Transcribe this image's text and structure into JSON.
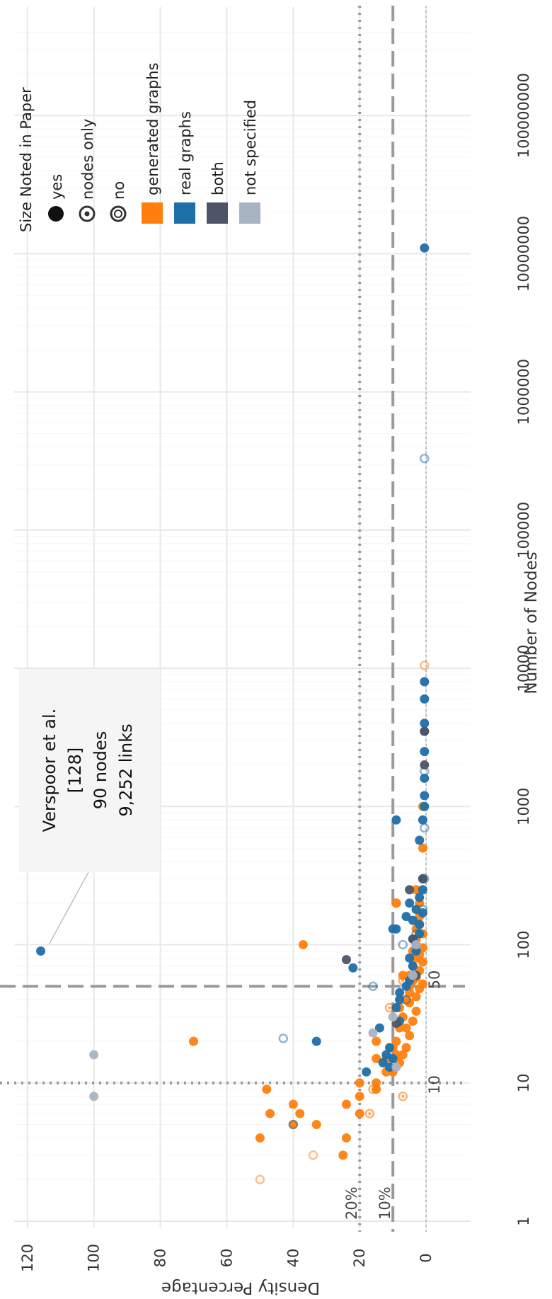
{
  "chart_data": {
    "type": "scatter",
    "title": "",
    "xlabel": "Number of Nodes",
    "ylabel": "Density Percentage",
    "x_scale": "log",
    "xlim": [
      1,
      300000000
    ],
    "ylim": [
      -7,
      124
    ],
    "x_ticks": [
      "1",
      "10",
      "100",
      "1000",
      "10000",
      "100000",
      "1000000",
      "10000000",
      "100000000"
    ],
    "y_ticks": [
      "0",
      "20",
      "40",
      "60",
      "80",
      "100",
      "120"
    ],
    "grid": true,
    "reference_lines": [
      {
        "axis": "x",
        "value": 10,
        "style": "dotted",
        "label": "10"
      },
      {
        "axis": "x",
        "value": 50,
        "style": "dashed",
        "label": "50"
      },
      {
        "axis": "y",
        "value": 20,
        "style": "dotted",
        "label": "20%"
      },
      {
        "axis": "y",
        "value": 10,
        "style": "dashed",
        "label": "10%"
      },
      {
        "axis": "y",
        "value": 0,
        "style": "dotted-fine",
        "label": ""
      }
    ],
    "annotation": {
      "lines": [
        "Verspoor et al.",
        "[128]",
        "90 nodes",
        "9,252 links"
      ],
      "x": 90,
      "y": 116
    },
    "legend": {
      "placement": "top-right",
      "size_title": "Size Noted in Paper",
      "size_items": [
        "yes",
        "nodes only",
        "no"
      ],
      "type_items": [
        "generated graphs",
        "real graphs",
        "both",
        "not specified"
      ]
    },
    "colors": {
      "generated": "#FF7F0E",
      "real": "#1F6FA8",
      "both": "#4D5566",
      "unspecified": "#A8B4C2"
    },
    "series": [
      {
        "name": "generated graphs",
        "points": [
          [
            20,
            70
          ],
          [
            100,
            37
          ],
          [
            9,
            48
          ],
          [
            7,
            40
          ],
          [
            6,
            38
          ],
          [
            3,
            25
          ],
          [
            4,
            24
          ],
          [
            5,
            33
          ],
          [
            4,
            50
          ],
          [
            6,
            47
          ],
          [
            8,
            20
          ],
          [
            10,
            20
          ],
          [
            9,
            15
          ],
          [
            15,
            15
          ],
          [
            20,
            15
          ],
          [
            5,
            40
          ],
          [
            6,
            20
          ],
          [
            7,
            24
          ],
          [
            10,
            15
          ],
          [
            12,
            12
          ],
          [
            15,
            12
          ],
          [
            18,
            10
          ],
          [
            20,
            9
          ],
          [
            25,
            8
          ],
          [
            30,
            7
          ],
          [
            35,
            8
          ],
          [
            40,
            6
          ],
          [
            45,
            5
          ],
          [
            50,
            5
          ],
          [
            55,
            4
          ],
          [
            60,
            5
          ],
          [
            70,
            4
          ],
          [
            80,
            3
          ],
          [
            90,
            4
          ],
          [
            110,
            3
          ],
          [
            130,
            3
          ],
          [
            160,
            2
          ],
          [
            200,
            2
          ],
          [
            200,
            9
          ],
          [
            250,
            3
          ],
          [
            500,
            1
          ],
          [
            1000,
            1
          ],
          [
            3500,
            0.5
          ],
          [
            12,
            10
          ],
          [
            14,
            8
          ],
          [
            16,
            7
          ],
          [
            18,
            6
          ],
          [
            22,
            5
          ],
          [
            28,
            4
          ],
          [
            33,
            3
          ],
          [
            38,
            5
          ],
          [
            42,
            3
          ],
          [
            48,
            2
          ],
          [
            52,
            1
          ],
          [
            58,
            3
          ],
          [
            65,
            2
          ],
          [
            75,
            1
          ],
          [
            85,
            2
          ],
          [
            95,
            1
          ],
          [
            120,
            1
          ],
          [
            140,
            2
          ],
          [
            60,
            7
          ],
          [
            25,
            6
          ],
          [
            16,
            9
          ]
        ]
      },
      {
        "name": "generated graphs (nodes only)",
        "hollow": "dot",
        "points": [
          [
            6,
            17
          ],
          [
            8,
            7
          ],
          [
            9,
            16
          ],
          [
            200,
            9
          ],
          [
            55,
            7
          ],
          [
            35,
            11
          ]
        ]
      },
      {
        "name": "generated graphs (no)",
        "hollow": "ring",
        "points": [
          [
            2,
            50
          ],
          [
            3,
            34
          ],
          [
            10500,
            0.5
          ]
        ]
      },
      {
        "name": "real graphs",
        "points": [
          [
            90,
            116
          ],
          [
            68,
            22
          ],
          [
            20,
            33
          ],
          [
            12,
            18
          ],
          [
            13,
            11
          ],
          [
            14,
            13
          ],
          [
            15,
            10
          ],
          [
            16,
            12
          ],
          [
            18,
            11
          ],
          [
            28,
            8
          ],
          [
            40,
            8
          ],
          [
            50,
            6
          ],
          [
            55,
            5
          ],
          [
            60,
            4
          ],
          [
            70,
            4
          ],
          [
            100,
            3
          ],
          [
            120,
            2
          ],
          [
            130,
            10
          ],
          [
            130,
            9
          ],
          [
            150,
            4
          ],
          [
            180,
            3
          ],
          [
            200,
            5
          ],
          [
            250,
            1
          ],
          [
            300,
            1
          ],
          [
            570,
            2
          ],
          [
            800,
            1
          ],
          [
            1000,
            0.5
          ],
          [
            1200,
            0.5
          ],
          [
            1600,
            0.5
          ],
          [
            2500,
            0.5
          ],
          [
            3500,
            0.5
          ],
          [
            4000,
            0.5
          ],
          [
            6000,
            0.5
          ],
          [
            8000,
            0.5
          ],
          [
            11000000,
            0.5
          ],
          [
            25,
            14
          ],
          [
            35,
            9
          ],
          [
            45,
            8
          ],
          [
            80,
            5
          ],
          [
            90,
            3
          ],
          [
            110,
            4
          ],
          [
            140,
            2
          ],
          [
            170,
            1
          ],
          [
            220,
            2
          ],
          [
            160,
            6
          ],
          [
            800,
            9
          ]
        ]
      },
      {
        "name": "real graphs (no)",
        "hollow": "ring",
        "points": [
          [
            5,
            40
          ],
          [
            21,
            43
          ],
          [
            50,
            16
          ],
          [
            100,
            7
          ],
          [
            120,
            3
          ],
          [
            180,
            1
          ],
          [
            300,
            0.5
          ],
          [
            700,
            0.5
          ],
          [
            1800,
            0.5
          ],
          [
            330000,
            0.5
          ],
          [
            40,
            6
          ]
        ]
      },
      {
        "name": "both",
        "points": [
          [
            78,
            24
          ],
          [
            27,
            9
          ],
          [
            300,
            1
          ],
          [
            250,
            5
          ],
          [
            2000,
            0.5
          ],
          [
            3500,
            0.5
          ],
          [
            110,
            4
          ],
          [
            60,
            3
          ]
        ]
      },
      {
        "name": "not specified",
        "points": [
          [
            8,
            100
          ],
          [
            16,
            100
          ],
          [
            23,
            16
          ],
          [
            30,
            10
          ],
          [
            60,
            4
          ],
          [
            100,
            3
          ],
          [
            13,
            9
          ]
        ]
      }
    ]
  }
}
